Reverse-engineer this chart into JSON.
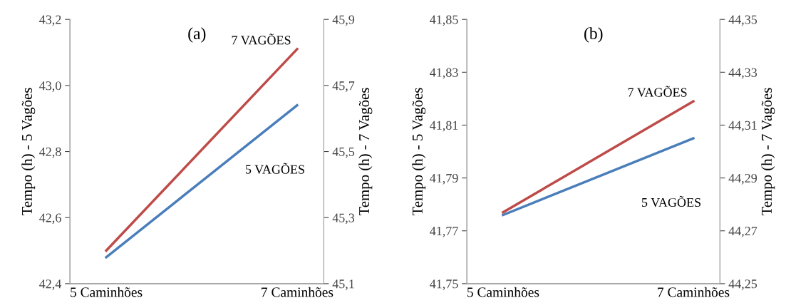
{
  "chart_data": [
    {
      "type": "line",
      "title": "(a)",
      "ylabel": "Tempo (h) - 5 Vagões",
      "y2label": "Tempo (h) - 7 Vagões",
      "categories": [
        "5 Caminhões",
        "7 Caminhões"
      ],
      "series": [
        {
          "name": "5 VAGÕES",
          "color": "#4a7ebb",
          "values": [
            42.48,
            42.94
          ]
        },
        {
          "name": "7 VAGÕES",
          "color": "#be4b48",
          "values": [
            45.2,
            45.81
          ],
          "axis": "y2"
        }
      ],
      "ylim": [
        42.4,
        43.2
      ],
      "yticks": [
        {
          "value": 42.4,
          "label": "42,4"
        },
        {
          "value": 42.6,
          "label": "42,6"
        },
        {
          "value": 42.8,
          "label": "42,8"
        },
        {
          "value": 43.0,
          "label": "43,0"
        },
        {
          "value": 43.2,
          "label": "43,2"
        }
      ],
      "y2lim": [
        45.1,
        45.9
      ],
      "y2ticks": [
        {
          "value": 45.1,
          "label": "45,1"
        },
        {
          "value": 45.3,
          "label": "45,3"
        },
        {
          "value": 45.5,
          "label": "45,5"
        },
        {
          "value": 45.7,
          "label": "45,7"
        },
        {
          "value": 45.9,
          "label": "45,9"
        }
      ],
      "grid": false,
      "legend": false,
      "marker": "none",
      "line_style": "solid"
    },
    {
      "type": "line",
      "title": "(b)",
      "ylabel": "Tempo (h) - 5 Vagões",
      "y2label": "Tempo (h) - 7 Vagões",
      "categories": [
        "5 Caminhões",
        "7 Caminhões"
      ],
      "series": [
        {
          "name": "5 VAGÕES",
          "color": "#4a7ebb",
          "values": [
            41.776,
            41.805
          ]
        },
        {
          "name": "7 VAGÕES",
          "color": "#be4b48",
          "values": [
            44.277,
            44.319
          ],
          "axis": "y2"
        }
      ],
      "ylim": [
        41.75,
        41.85
      ],
      "yticks": [
        {
          "value": 41.75,
          "label": "41,75"
        },
        {
          "value": 41.77,
          "label": "41,77"
        },
        {
          "value": 41.79,
          "label": "41,79"
        },
        {
          "value": 41.81,
          "label": "41,81"
        },
        {
          "value": 41.83,
          "label": "41,83"
        },
        {
          "value": 41.85,
          "label": "41,85"
        }
      ],
      "y2lim": [
        44.25,
        44.35
      ],
      "y2ticks": [
        {
          "value": 44.25,
          "label": "44,25"
        },
        {
          "value": 44.27,
          "label": "44,27"
        },
        {
          "value": 44.29,
          "label": "44,29"
        },
        {
          "value": 44.31,
          "label": "44,31"
        },
        {
          "value": 44.33,
          "label": "44,33"
        },
        {
          "value": 44.35,
          "label": "44,35"
        }
      ],
      "grid": false,
      "legend": false,
      "marker": "none",
      "line_style": "solid"
    }
  ]
}
